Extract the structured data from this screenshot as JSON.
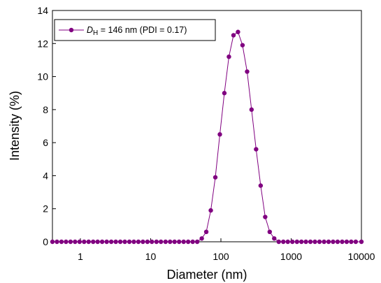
{
  "chart_data": {
    "type": "scatter",
    "xlabel": "Diameter (nm)",
    "ylabel": "Intensity (%)",
    "xscale": "log",
    "xlim": [
      0.4,
      10000
    ],
    "ylim": [
      0,
      14
    ],
    "x_ticks": [
      1,
      10,
      100,
      1000,
      10000
    ],
    "x_tick_labels": [
      "1",
      "10",
      "100",
      "1000",
      "10000"
    ],
    "y_ticks": [
      0,
      2,
      4,
      6,
      8,
      10,
      12,
      14
    ],
    "y_tick_labels": [
      "0",
      "2",
      "4",
      "6",
      "8",
      "10",
      "12",
      "14"
    ],
    "grid": false,
    "legend_position": "top-left",
    "legend": {
      "symbol": "D",
      "subscript": "H",
      "text": " = 146 nm (PDI = 0.17)"
    },
    "series": [
      {
        "color": "#800080",
        "marker": "circle",
        "line": true,
        "x": [
          0.4,
          0.464,
          0.538,
          0.624,
          0.724,
          0.84,
          0.974,
          1.13,
          1.31,
          1.52,
          1.76,
          2.04,
          2.37,
          2.75,
          3.19,
          3.7,
          4.29,
          4.98,
          5.77,
          6.69,
          7.76,
          9.0,
          10.4,
          12.1,
          14.0,
          16.3,
          18.9,
          21.9,
          25.4,
          29.5,
          34.2,
          39.7,
          46.0,
          53.4,
          61.9,
          71.8,
          83.3,
          96.6,
          112,
          130,
          151,
          175,
          203,
          236,
          273,
          317,
          368,
          427,
          495,
          574,
          666,
          773,
          896,
          1040,
          1210,
          1400,
          1620,
          1880,
          2180,
          2530,
          2940,
          3410,
          3950,
          4580,
          5320,
          6170,
          7150,
          8300,
          10000
        ],
        "y": [
          0,
          0,
          0,
          0,
          0,
          0,
          0,
          0,
          0,
          0,
          0,
          0,
          0,
          0,
          0,
          0,
          0,
          0,
          0,
          0,
          0,
          0,
          0,
          0,
          0,
          0,
          0,
          0,
          0,
          0,
          0,
          0,
          0,
          0.2,
          0.6,
          1.9,
          3.9,
          6.5,
          9.0,
          11.2,
          12.5,
          12.7,
          11.9,
          10.3,
          8.0,
          5.6,
          3.4,
          1.5,
          0.6,
          0.2,
          0,
          0,
          0,
          0,
          0,
          0,
          0,
          0,
          0,
          0,
          0,
          0,
          0,
          0,
          0,
          0,
          0,
          0,
          0
        ]
      }
    ]
  }
}
